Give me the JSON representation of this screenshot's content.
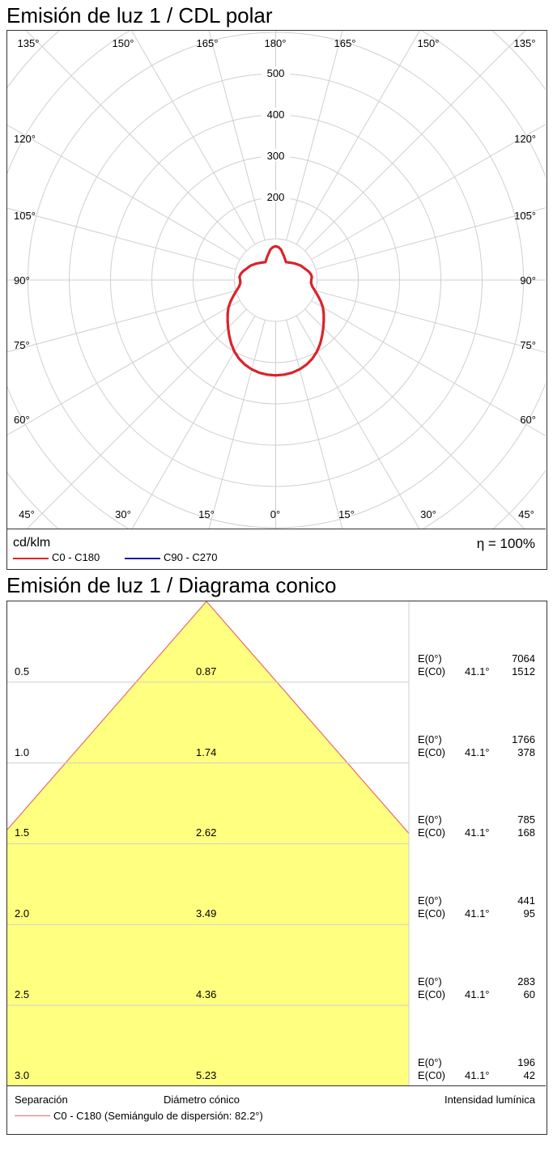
{
  "polar": {
    "title": "Emisión de luz 1 / CDL polar",
    "unit": "cd/klm",
    "efficiency": "η = 100%",
    "legend": [
      {
        "name": "C0 - C180",
        "color": "#e32222"
      },
      {
        "name": "C90 - C270",
        "color": "#1a1aa8"
      }
    ],
    "radial_labels": [
      "200",
      "300",
      "400",
      "500"
    ],
    "angle_labels": {
      "top": [
        "135°",
        "150°",
        "165°",
        "180°",
        "165°",
        "150°",
        "135°"
      ],
      "side": [
        "120°",
        "105°",
        "90°",
        "75°",
        "60°"
      ],
      "bottom": [
        "45°",
        "30°",
        "15°",
        "0°",
        "15°",
        "30°",
        "45°"
      ]
    }
  },
  "cone": {
    "title": "Emisión de luz 1 / Diagrama conico",
    "footer": {
      "col1": "Separación",
      "col2": "Diámetro cónico",
      "col3": "Intensidad lumínica",
      "legend": "C0 - C180 (Semiángulo de dispersión: 82.2°)",
      "legend_color": "#e86a6a"
    },
    "rows": [
      {
        "h": "0.5",
        "d": "0.87",
        "e0_label": "E(0°)",
        "ec0_label": "E(C0)",
        "angle": "41.1°",
        "e0": "7064",
        "ec0": "1512"
      },
      {
        "h": "1.0",
        "d": "1.74",
        "e0_label": "E(0°)",
        "ec0_label": "E(C0)",
        "angle": "41.1°",
        "e0": "1766",
        "ec0": "378"
      },
      {
        "h": "1.5",
        "d": "2.62",
        "e0_label": "E(0°)",
        "ec0_label": "E(C0)",
        "angle": "41.1°",
        "e0": "785",
        "ec0": "168"
      },
      {
        "h": "2.0",
        "d": "3.49",
        "e0_label": "E(0°)",
        "ec0_label": "E(C0)",
        "angle": "41.1°",
        "e0": "441",
        "ec0": "95"
      },
      {
        "h": "2.5",
        "d": "4.36",
        "e0_label": "E(0°)",
        "ec0_label": "E(C0)",
        "angle": "41.1°",
        "e0": "283",
        "ec0": "60"
      },
      {
        "h": "3.0",
        "d": "5.23",
        "e0_label": "E(0°)",
        "ec0_label": "E(C0)",
        "angle": "41.1°",
        "e0": "196",
        "ec0": "42"
      }
    ]
  },
  "chart_data": [
    {
      "type": "polar",
      "title": "Emisión de luz 1 / CDL polar",
      "unit": "cd/klm",
      "r_ticks": [
        100,
        200,
        300,
        400,
        500
      ],
      "r_max": 600,
      "series": [
        {
          "name": "C0 - C180",
          "color": "#e32222",
          "angles_deg": [
            0,
            5,
            10,
            15,
            20,
            25,
            30,
            35,
            40,
            45,
            50,
            55,
            60,
            65,
            70,
            75,
            80,
            85,
            90,
            95,
            100,
            105,
            110,
            120,
            130,
            140,
            150,
            160,
            170,
            175,
            180
          ],
          "values": [
            231,
            230,
            228,
            224,
            218,
            210,
            200,
            188,
            175,
            163,
            152,
            142,
            132,
            120,
            108,
            98,
            90,
            86,
            86,
            88,
            86,
            82,
            77,
            70,
            62,
            55,
            50,
            60,
            75,
            80,
            82
          ]
        },
        {
          "name": "C90 - C270",
          "color": "#1a1aa8",
          "angles_deg": [
            0,
            5,
            10,
            15,
            20,
            25,
            30,
            35,
            40,
            45,
            50,
            55,
            60,
            65,
            70,
            75,
            80,
            85,
            90,
            95,
            100,
            105,
            110,
            120,
            130,
            140,
            150,
            160,
            170,
            175,
            180
          ],
          "values": [
            231,
            230,
            228,
            224,
            218,
            210,
            200,
            188,
            175,
            163,
            152,
            142,
            132,
            120,
            108,
            98,
            90,
            86,
            86,
            88,
            86,
            82,
            77,
            70,
            62,
            55,
            50,
            60,
            75,
            80,
            82
          ]
        }
      ]
    },
    {
      "type": "cone",
      "title": "Emisión de luz 1 / Diagrama conico",
      "half_angle_deg": 41.1,
      "dispersion_half_angle_deg": 82.2,
      "separation": [
        0.5,
        1.0,
        1.5,
        2.0,
        2.5,
        3.0
      ],
      "cone_diameter": [
        0.87,
        1.74,
        2.62,
        3.49,
        4.36,
        5.23
      ],
      "E0": [
        7064,
        1766,
        785,
        441,
        283,
        196
      ],
      "EC0": [
        1512,
        378,
        168,
        95,
        60,
        42
      ]
    }
  ]
}
